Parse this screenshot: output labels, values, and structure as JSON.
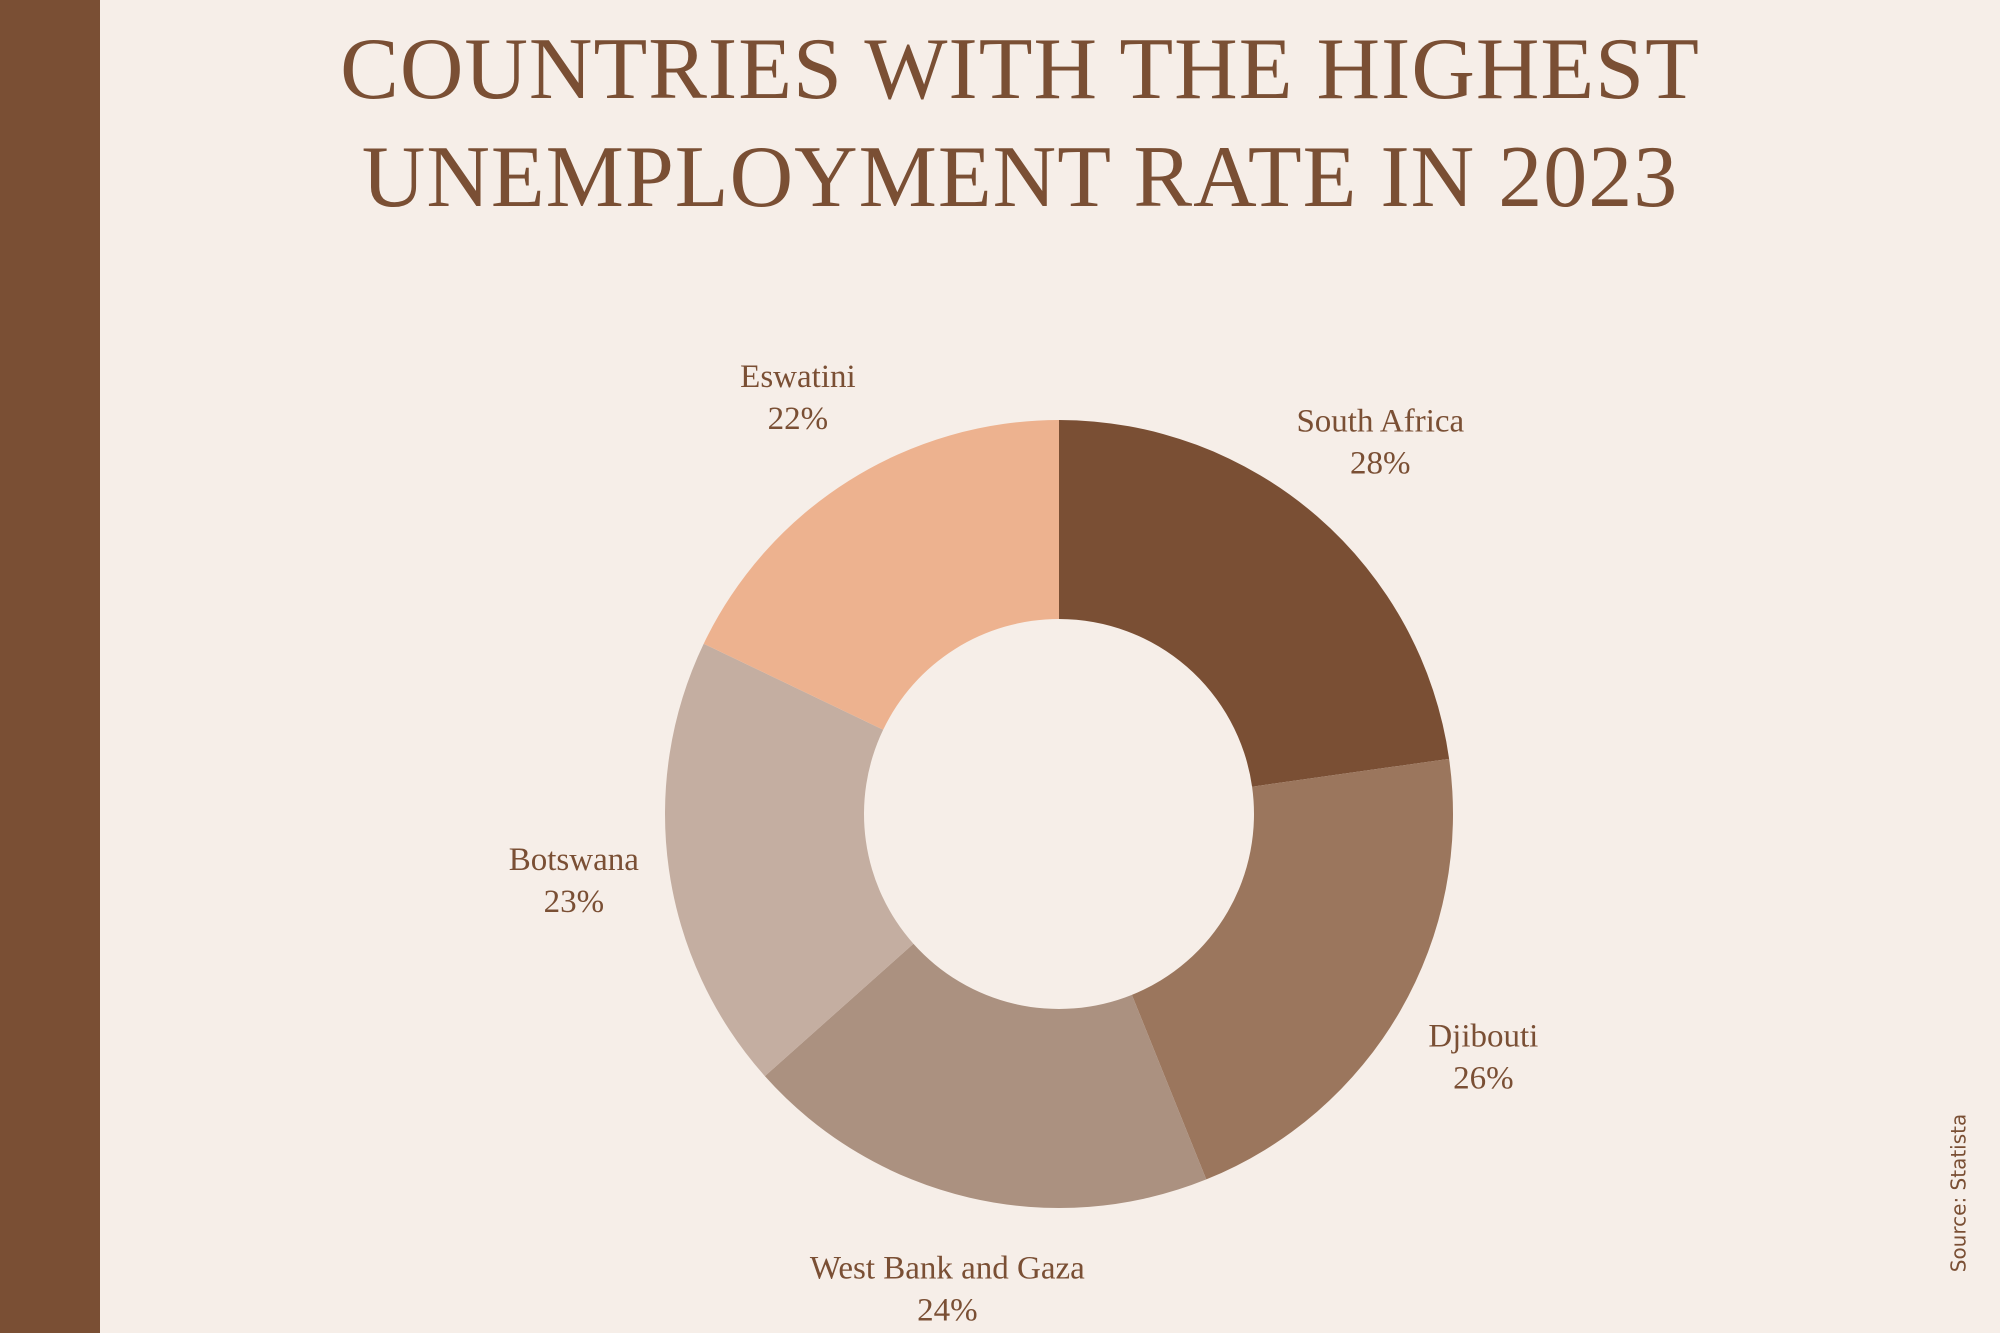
{
  "chart_data": {
    "type": "pie",
    "title": [
      "COUNTRIES WITH THE HIGHEST",
      "UNEMPLOYMENT RATE IN 2023"
    ],
    "categories": [
      "South Africa",
      "Djibouti",
      "West Bank and Gaza",
      "Botswana",
      "Eswatini"
    ],
    "values": [
      28,
      26,
      24,
      23,
      22
    ],
    "value_labels": [
      "28%",
      "26%",
      "24%",
      "23%",
      "22%"
    ],
    "colors": [
      "#7a4f34",
      "#9b765d",
      "#ab9180",
      "#c4aea1",
      "#edb28f"
    ],
    "donut": true,
    "source": "Source:  Statista"
  }
}
